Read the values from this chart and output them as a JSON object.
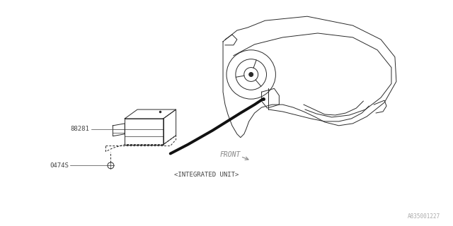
{
  "background_color": "#ffffff",
  "border_color": "#cccccc",
  "line_color": "#2a2a2a",
  "text_color": "#444444",
  "watermark": "A835001227",
  "label_88281": "88281",
  "label_0474S": "0474S",
  "label_integrated": "<INTEGRATED UNIT>",
  "label_front": "FRONT",
  "fig_width": 6.4,
  "fig_height": 3.2,
  "dpi": 100
}
